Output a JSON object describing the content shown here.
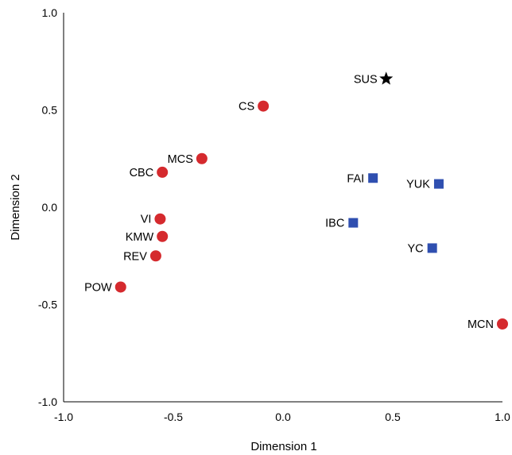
{
  "chart_data": {
    "type": "scatter",
    "title": "",
    "xlabel": "Dimension 1",
    "ylabel": "Dimension 2",
    "xlim": [
      -1.0,
      1.0
    ],
    "ylim": [
      -1.0,
      1.0
    ],
    "xticks": [
      "-1.0",
      "-0.5",
      "0.0",
      "0.5",
      "1.0"
    ],
    "yticks": [
      "1.0",
      "0.5",
      "0.0",
      "-0.5",
      "-1.0"
    ],
    "grid": false,
    "legend": "none",
    "colors": {
      "circle": "#d52a2e",
      "square": "#2f4fb0",
      "star": "#000000"
    },
    "points": [
      {
        "label": "SUS",
        "x": 0.47,
        "y": 0.66,
        "marker": "star",
        "label_side": "left"
      },
      {
        "label": "CS",
        "x": -0.09,
        "y": 0.52,
        "marker": "circle",
        "label_side": "left"
      },
      {
        "label": "MCS",
        "x": -0.37,
        "y": 0.25,
        "marker": "circle",
        "label_side": "left"
      },
      {
        "label": "CBC",
        "x": -0.55,
        "y": 0.18,
        "marker": "circle",
        "label_side": "left"
      },
      {
        "label": "FAI",
        "x": 0.41,
        "y": 0.15,
        "marker": "square",
        "label_side": "left"
      },
      {
        "label": "YUK",
        "x": 0.71,
        "y": 0.12,
        "marker": "square",
        "label_side": "left"
      },
      {
        "label": "IBC",
        "x": 0.32,
        "y": -0.08,
        "marker": "square",
        "label_side": "left"
      },
      {
        "label": "VI",
        "x": -0.56,
        "y": -0.06,
        "marker": "circle",
        "label_side": "left"
      },
      {
        "label": "KMW",
        "x": -0.55,
        "y": -0.15,
        "marker": "circle",
        "label_side": "left"
      },
      {
        "label": "YC",
        "x": 0.68,
        "y": -0.21,
        "marker": "square",
        "label_side": "left"
      },
      {
        "label": "REV",
        "x": -0.58,
        "y": -0.25,
        "marker": "circle",
        "label_side": "left"
      },
      {
        "label": "POW",
        "x": -0.74,
        "y": -0.41,
        "marker": "circle",
        "label_side": "left"
      },
      {
        "label": "MCN",
        "x": 1.0,
        "y": -0.6,
        "marker": "circle",
        "label_side": "left"
      }
    ]
  }
}
